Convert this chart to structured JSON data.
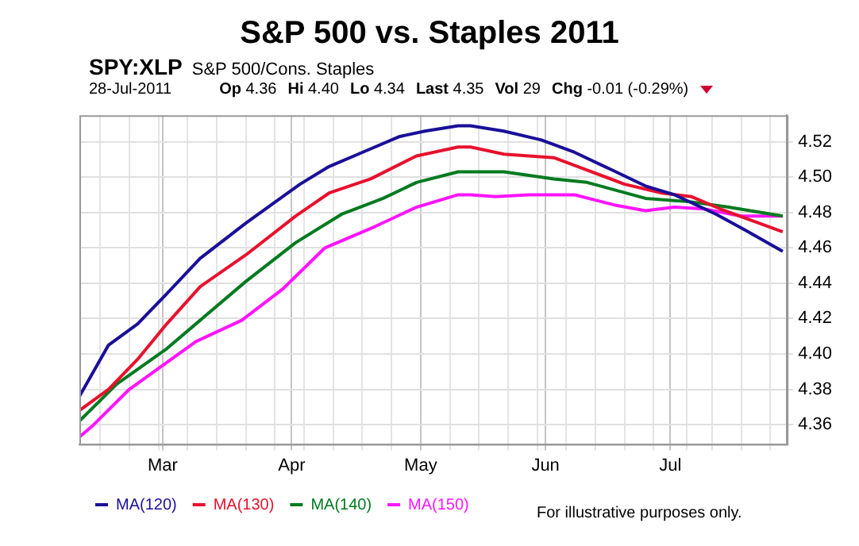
{
  "chart_data": {
    "type": "line",
    "title": "S&P 500 vs. Staples 2011",
    "annotations": [
      "SPY:XLP",
      "S&P 500/Cons. Staples",
      "28-Jul-2011",
      "Op 4.36",
      "Hi 4.40",
      "Lo 4.34",
      "Last 4.35",
      "Vol 29",
      "Chg -0.01 (-0.29%)",
      "For illustrative purposes only."
    ],
    "xlim": [
      "2011-02-09",
      "2011-07-29"
    ],
    "xticks": [
      {
        "value": "2011-02-14",
        "label": null
      },
      {
        "value": "2011-02-21",
        "label": null
      },
      {
        "value": "2011-02-28",
        "label": null
      },
      {
        "value": "2011-03-01",
        "label": "Mar"
      },
      {
        "value": "2011-03-07",
        "label": null
      },
      {
        "value": "2011-03-14",
        "label": null
      },
      {
        "value": "2011-03-21",
        "label": null
      },
      {
        "value": "2011-03-28",
        "label": null
      },
      {
        "value": "2011-04-01",
        "label": "Apr"
      },
      {
        "value": "2011-04-04",
        "label": null
      },
      {
        "value": "2011-04-11",
        "label": null
      },
      {
        "value": "2011-04-18",
        "label": null
      },
      {
        "value": "2011-04-25",
        "label": null
      },
      {
        "value": "2011-05-02",
        "label": "May"
      },
      {
        "value": "2011-05-09",
        "label": null
      },
      {
        "value": "2011-05-16",
        "label": null
      },
      {
        "value": "2011-05-23",
        "label": null
      },
      {
        "value": "2011-05-30",
        "label": null
      },
      {
        "value": "2011-06-01",
        "label": "Jun"
      },
      {
        "value": "2011-06-06",
        "label": null
      },
      {
        "value": "2011-06-13",
        "label": null
      },
      {
        "value": "2011-06-20",
        "label": null
      },
      {
        "value": "2011-06-27",
        "label": null
      },
      {
        "value": "2011-07-01",
        "label": "Jul"
      },
      {
        "value": "2011-07-05",
        "label": null
      },
      {
        "value": "2011-07-11",
        "label": null
      },
      {
        "value": "2011-07-18",
        "label": null
      },
      {
        "value": "2011-07-25",
        "label": null
      }
    ],
    "ylim": [
      4.349,
      4.535
    ],
    "yticks": [
      4.36,
      4.38,
      {
        "value": 4.4,
        "label": "4.40"
      },
      4.42,
      4.44,
      4.46,
      4.48,
      {
        "value": 4.5,
        "label": "4.50"
      },
      4.52
    ],
    "grid": true,
    "legend": "bottom",
    "marker": "none",
    "line_style": "solid",
    "series": [
      {
        "name": "MA(120)",
        "color": "#1a0f99",
        "x": [
          "2011-02-09",
          "2011-02-16",
          "2011-02-23",
          "2011-03-02",
          "2011-03-10",
          "2011-03-21",
          "2011-04-03",
          "2011-04-10",
          "2011-04-19",
          "2011-04-27",
          "2011-05-03",
          "2011-05-11",
          "2011-05-14",
          "2011-05-22",
          "2011-05-31",
          "2011-06-08",
          "2011-06-17",
          "2011-06-25",
          "2011-07-02",
          "2011-07-12",
          "2011-07-19",
          "2011-07-28"
        ],
        "values": [
          4.376,
          4.405,
          4.417,
          4.434,
          4.454,
          4.474,
          4.496,
          4.506,
          4.515,
          4.523,
          4.526,
          4.529,
          4.529,
          4.526,
          4.521,
          4.514,
          4.504,
          4.495,
          4.49,
          4.479,
          4.47,
          4.458
        ]
      },
      {
        "name": "MA(130)",
        "color": "#e8112d",
        "x": [
          "2011-02-09",
          "2011-02-16",
          "2011-02-23",
          "2011-03-02",
          "2011-03-10",
          "2011-03-21",
          "2011-04-02",
          "2011-04-10",
          "2011-04-20",
          "2011-05-01",
          "2011-05-11",
          "2011-05-14",
          "2011-05-22",
          "2011-06-03",
          "2011-06-11",
          "2011-06-20",
          "2011-06-29",
          "2011-07-06",
          "2011-07-13",
          "2011-07-28"
        ],
        "values": [
          4.368,
          4.38,
          4.397,
          4.417,
          4.438,
          4.456,
          4.478,
          4.491,
          4.499,
          4.512,
          4.517,
          4.517,
          4.513,
          4.511,
          4.504,
          4.496,
          4.491,
          4.489,
          4.482,
          4.469
        ]
      },
      {
        "name": "MA(140)",
        "color": "#007a1f",
        "x": [
          "2011-02-09",
          "2011-02-18",
          "2011-03-02",
          "2011-03-10",
          "2011-03-21",
          "2011-04-02",
          "2011-04-13",
          "2011-04-23",
          "2011-05-01",
          "2011-05-11",
          "2011-05-14",
          "2011-05-22",
          "2011-06-03",
          "2011-06-11",
          "2011-06-25",
          "2011-07-06",
          "2011-07-15",
          "2011-07-28"
        ],
        "values": [
          4.362,
          4.383,
          4.403,
          4.419,
          4.441,
          4.463,
          4.479,
          4.488,
          4.497,
          4.503,
          4.503,
          4.503,
          4.499,
          4.497,
          4.488,
          4.486,
          4.483,
          4.478
        ]
      },
      {
        "name": "MA(150)",
        "color": "#ff14ff",
        "x": [
          "2011-02-09",
          "2011-02-12",
          "2011-02-21",
          "2011-03-09",
          "2011-03-20",
          "2011-03-30",
          "2011-04-09",
          "2011-04-21",
          "2011-05-01",
          "2011-05-11",
          "2011-05-14",
          "2011-05-20",
          "2011-05-28",
          "2011-06-08",
          "2011-06-18",
          "2011-06-25",
          "2011-07-02",
          "2011-07-09",
          "2011-07-18",
          "2011-07-28"
        ],
        "values": [
          4.353,
          4.359,
          4.38,
          4.407,
          4.419,
          4.437,
          4.46,
          4.472,
          4.483,
          4.49,
          4.49,
          4.489,
          4.49,
          4.49,
          4.484,
          4.481,
          4.483,
          4.482,
          4.478,
          4.478
        ]
      }
    ]
  }
}
